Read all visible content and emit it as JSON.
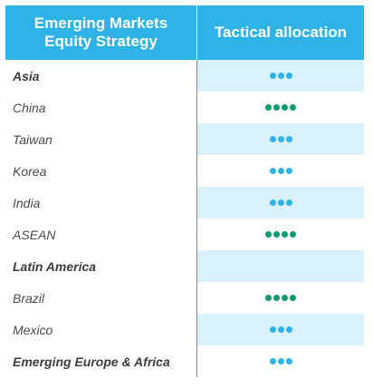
{
  "header": {
    "strategy_line1": "Emerging Markets",
    "strategy_line2": "Equity Strategy",
    "allocation_label": "Tactical allocation"
  },
  "colors": {
    "neutral": "#2db3e6",
    "overweight": "#0c9b6e"
  },
  "rows": [
    {
      "label": "Asia",
      "type": "region",
      "dots": 3,
      "dot_color": "neutral",
      "shaded": true
    },
    {
      "label": "China",
      "type": "country",
      "dots": 4,
      "dot_color": "overweight",
      "shaded": false
    },
    {
      "label": "Taiwan",
      "type": "country",
      "dots": 3,
      "dot_color": "neutral",
      "shaded": true
    },
    {
      "label": "Korea",
      "type": "country",
      "dots": 3,
      "dot_color": "neutral",
      "shaded": false
    },
    {
      "label": "India",
      "type": "country",
      "dots": 3,
      "dot_color": "neutral",
      "shaded": true
    },
    {
      "label": "ASEAN",
      "type": "country",
      "dots": 4,
      "dot_color": "overweight",
      "shaded": false
    },
    {
      "label": "Latin America",
      "type": "region",
      "dots": 0,
      "dot_color": "neutral",
      "shaded": true
    },
    {
      "label": "Brazil",
      "type": "country",
      "dots": 4,
      "dot_color": "overweight",
      "shaded": false
    },
    {
      "label": "Mexico",
      "type": "country",
      "dots": 3,
      "dot_color": "neutral",
      "shaded": true
    },
    {
      "label": "Emerging Europe & Africa",
      "type": "region",
      "dots": 3,
      "dot_color": "neutral",
      "shaded": false
    }
  ]
}
